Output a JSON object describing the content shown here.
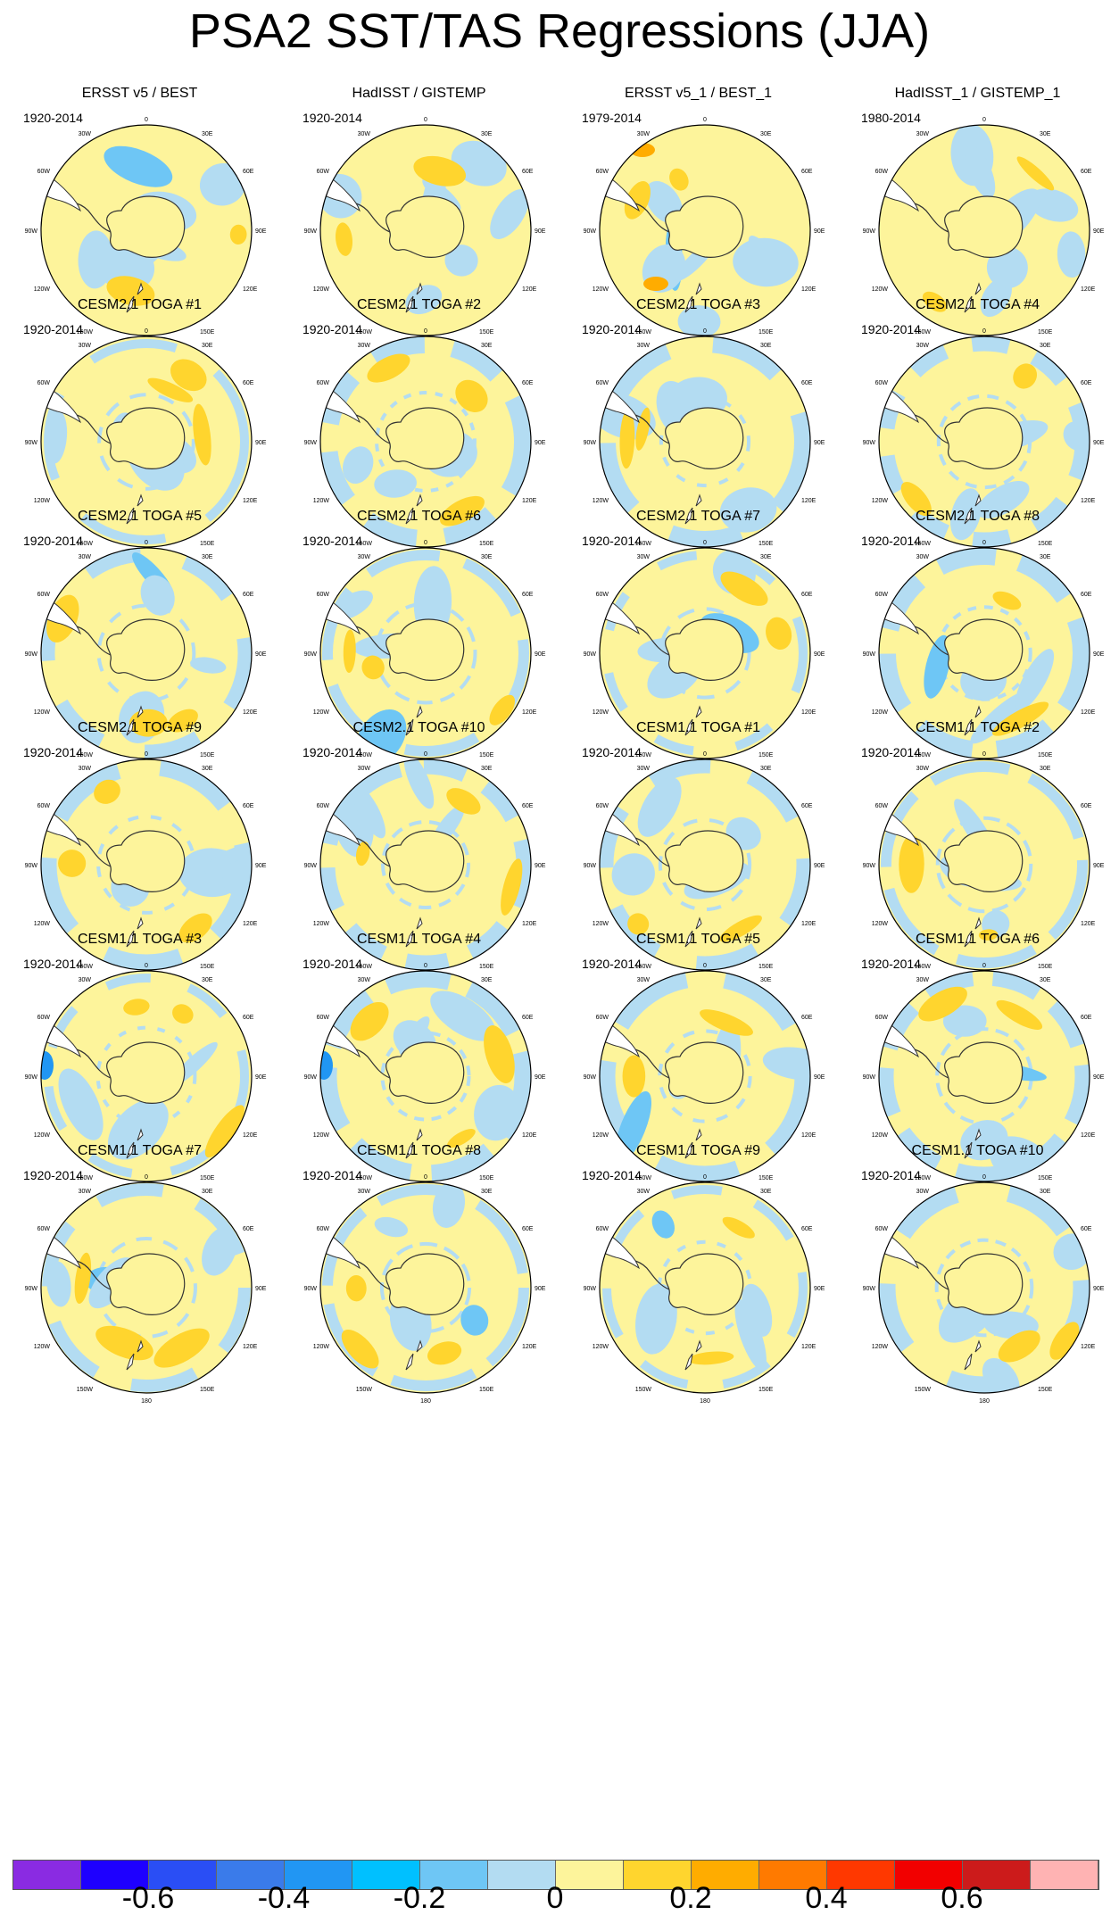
{
  "title": "PSA2 SST/TAS Regressions (JJA)",
  "map_labels": {
    "top": "0",
    "bottom": "180",
    "left": [
      "30W",
      "60W",
      "90W",
      "120W",
      "150W"
    ],
    "right": [
      "30E",
      "60E",
      "90E",
      "120E",
      "150E"
    ]
  },
  "panels": [
    {
      "title": "ERSST v5 / BEST",
      "period": "1920-2014"
    },
    {
      "title": "HadISST / GISTEMP",
      "period": "1920-2014"
    },
    {
      "title": "ERSST v5_1 / BEST_1",
      "period": "1979-2014"
    },
    {
      "title": "HadISST_1 / GISTEMP_1",
      "period": "1980-2014"
    },
    {
      "title": "CESM2.1 TOGA #1",
      "period": "1920-2014"
    },
    {
      "title": "CESM2.1 TOGA #2",
      "period": "1920-2014"
    },
    {
      "title": "CESM2.1 TOGA #3",
      "period": "1920-2014"
    },
    {
      "title": "CESM2.1 TOGA #4",
      "period": "1920-2014"
    },
    {
      "title": "CESM2.1 TOGA #5",
      "period": "1920-2014"
    },
    {
      "title": "CESM2.1 TOGA #6",
      "period": "1920-2014"
    },
    {
      "title": "CESM2.1 TOGA #7",
      "period": "1920-2014"
    },
    {
      "title": "CESM2.1 TOGA #8",
      "period": "1920-2014"
    },
    {
      "title": "CESM2.1 TOGA #9",
      "period": "1920-2014"
    },
    {
      "title": "CESM2.1 TOGA #10",
      "period": "1920-2014"
    },
    {
      "title": "CESM1.1 TOGA #1",
      "period": "1920-2014"
    },
    {
      "title": "CESM1.1 TOGA #2",
      "period": "1920-2014"
    },
    {
      "title": "CESM1.1 TOGA #3",
      "period": "1920-2014"
    },
    {
      "title": "CESM1.1 TOGA #4",
      "period": "1920-2014"
    },
    {
      "title": "CESM1.1 TOGA #5",
      "period": "1920-2014"
    },
    {
      "title": "CESM1.1 TOGA #6",
      "period": "1920-2014"
    },
    {
      "title": "CESM1.1 TOGA #7",
      "period": "1920-2014"
    },
    {
      "title": "CESM1.1 TOGA #8",
      "period": "1920-2014"
    },
    {
      "title": "CESM1.1 TOGA #9",
      "period": "1920-2014"
    },
    {
      "title": "CESM1.1 TOGA #10",
      "period": "1920-2014"
    }
  ],
  "colorbar": {
    "colors": [
      "#8a2be2",
      "#1e00ff",
      "#2a4ef5",
      "#3a7bea",
      "#2196f3",
      "#00c0ff",
      "#6ec6f5",
      "#b3dcf2",
      "#fdf49b",
      "#ffd52e",
      "#ffac00",
      "#ff7a00",
      "#ff3800",
      "#f20000",
      "#cc1b1b",
      "#ffb3b3"
    ],
    "labels": [
      "-0.6",
      "-0.4",
      "-0.2",
      "0",
      "0.2",
      "0.4",
      "0.6"
    ]
  },
  "palette": {
    "land": "#ffffff",
    "ocean_zero_pos": "#fdf49b",
    "ocean_zero_neg": "#b3dcf2",
    "pos_mid": "#ffd52e",
    "pos_strong": "#ffac00",
    "neg_mid": "#6ec6f5",
    "neg_strong": "#2196f3"
  }
}
